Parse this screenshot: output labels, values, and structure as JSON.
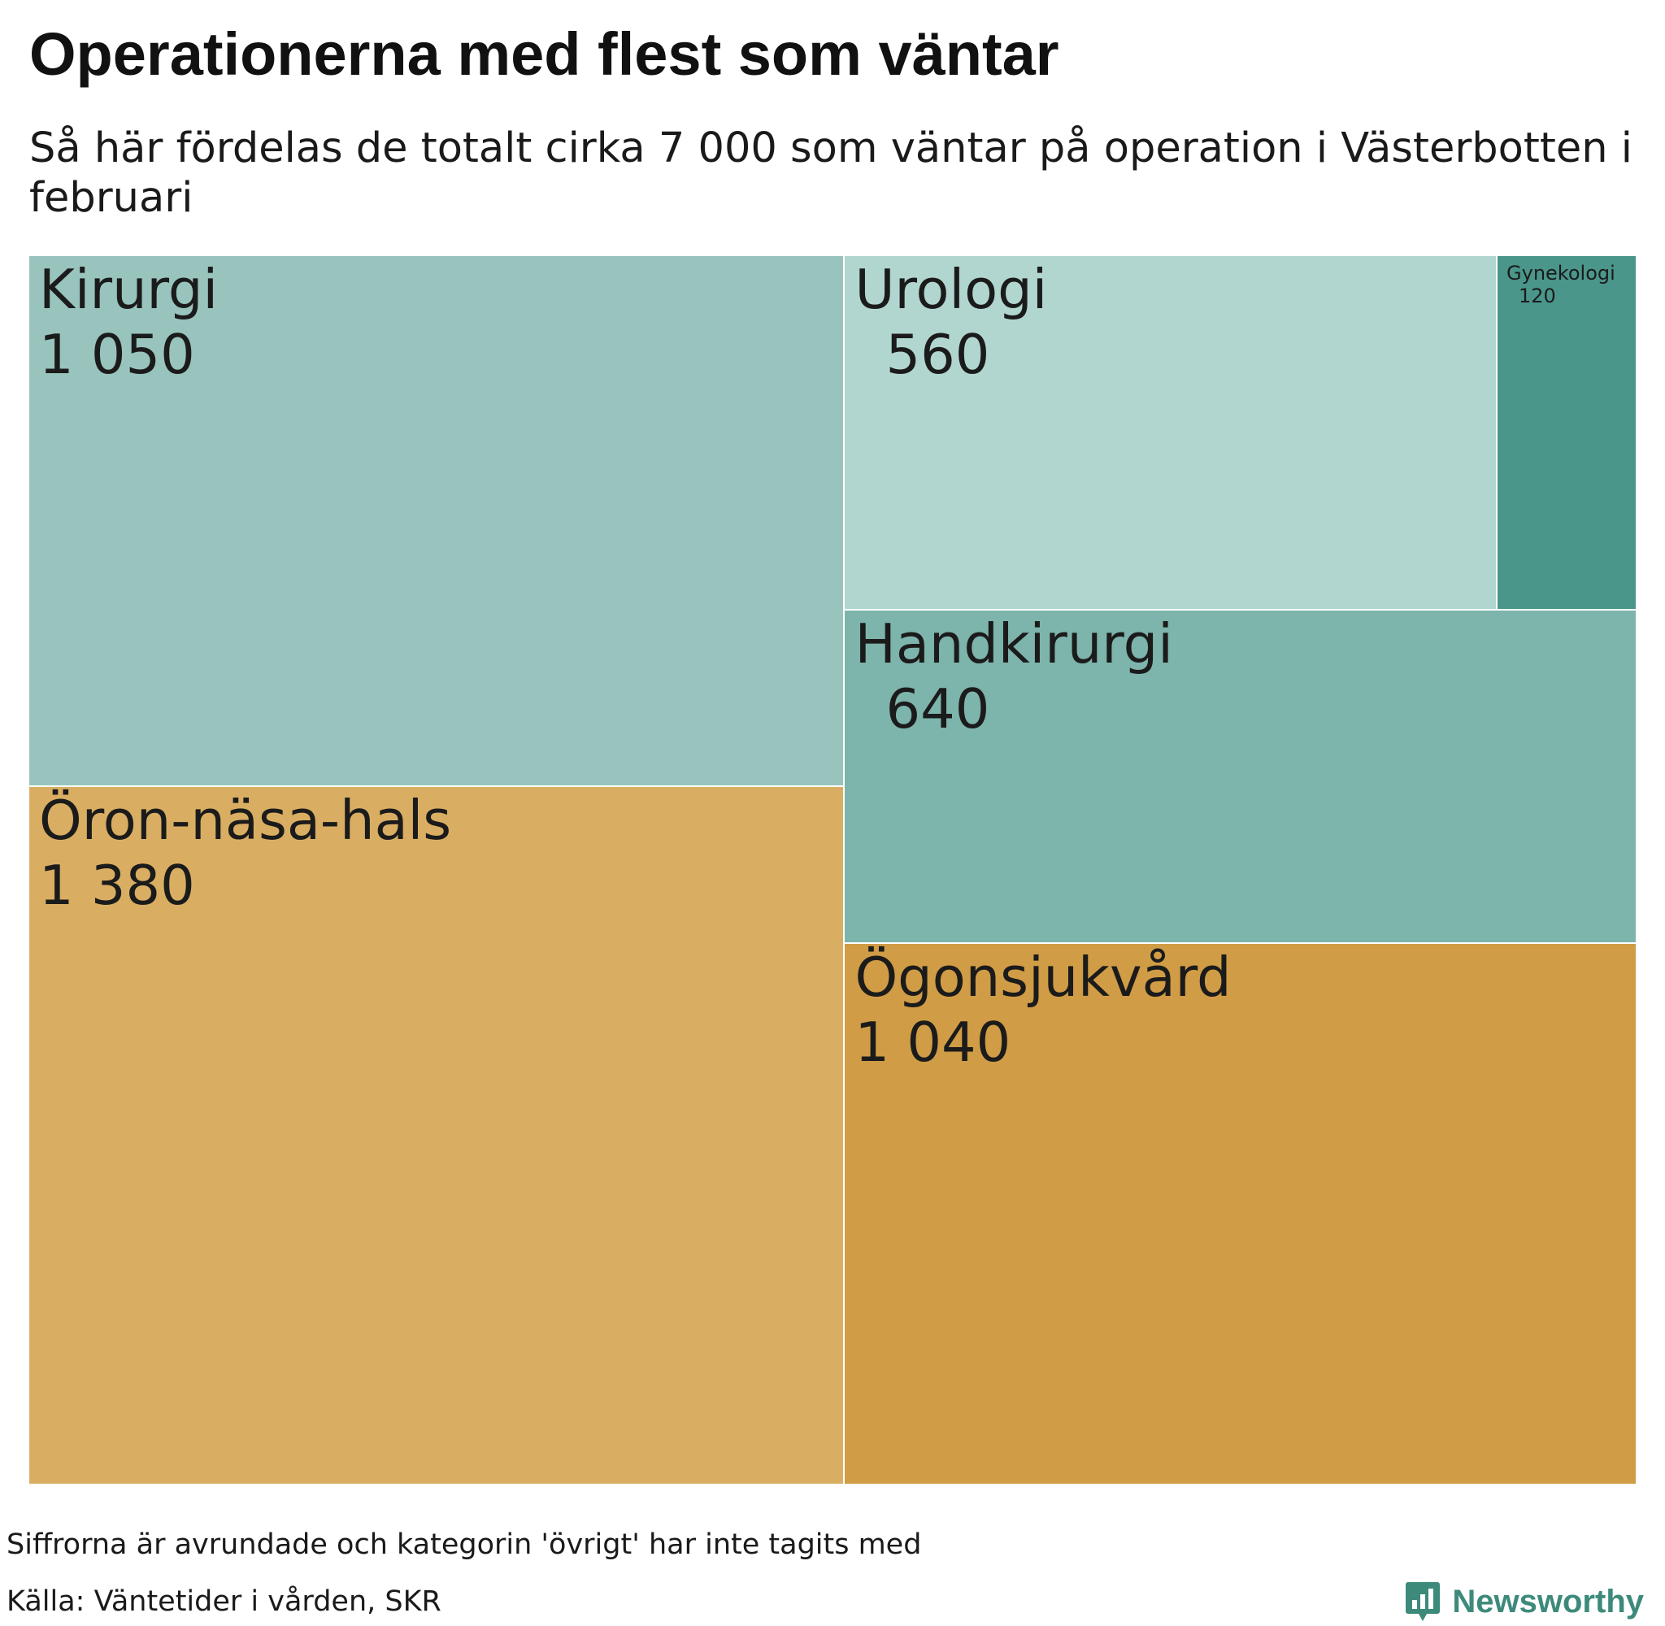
{
  "title": "Operationerna med flest som väntar",
  "subtitle": "Så här fördelas de totalt cirka 7 000 som väntar på operation i Västerbotten i februari",
  "chart_data": {
    "type": "treemap",
    "title": "Operationerna med flest som väntar",
    "subtitle": "Så här fördelas de totalt cirka 7 000 som väntar på operation i Västerbotten i februari",
    "items": [
      {
        "name": "Kirurgi",
        "label": "1 050",
        "value": 1050,
        "color": "#98c4bd"
      },
      {
        "name": "Öron-näsa-hals",
        "label": "1 380",
        "value": 1380,
        "color": "#d9ae62"
      },
      {
        "name": "Urologi",
        "label": "560",
        "value": 560,
        "color": "#b1d6cf"
      },
      {
        "name": "Gynekologi",
        "label": "120",
        "value": 120,
        "color": "#4a968a"
      },
      {
        "name": "Handkirurgi",
        "label": "640",
        "value": 640,
        "color": "#7db4ac"
      },
      {
        "name": "Ögonsjukvård",
        "label": "1 040",
        "value": 1040,
        "color": "#d09c45"
      }
    ]
  },
  "footer": {
    "note": "Siffrorna är avrundade och kategorin 'övrigt' har inte tagits med",
    "source": "Källa: Väntetider i vården, SKR",
    "brand": "Newsworthy",
    "brand_color": "#3d8a7b",
    "brand_icon": "newsworthy-logo-icon"
  }
}
